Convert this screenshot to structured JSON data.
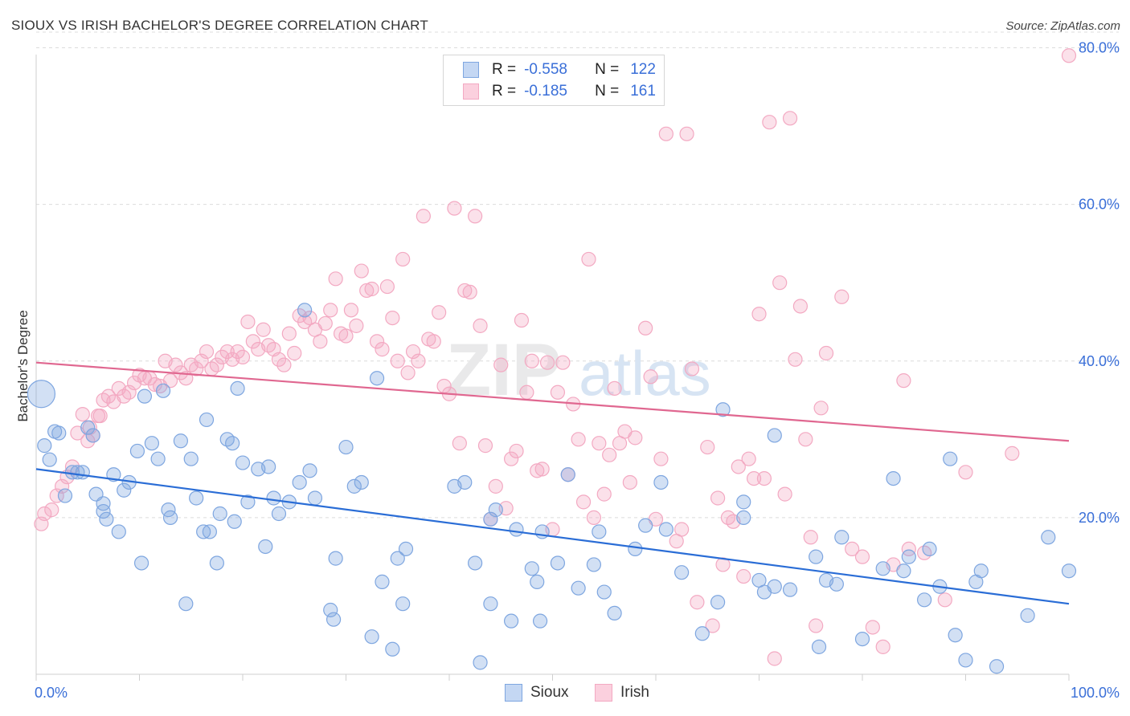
{
  "title": "SIOUX VS IRISH BACHELOR'S DEGREE CORRELATION CHART",
  "source": "Source: ZipAtlas.com",
  "watermark": {
    "zip": "ZIP",
    "atlas": "atlas"
  },
  "legend": {
    "rows": [
      {
        "r_label": "R =",
        "r_value": "-0.558",
        "n_label": "N =",
        "n_value": "122"
      },
      {
        "r_label": "R =",
        "r_value": "-0.185",
        "n_label": "N =",
        "n_value": "161"
      }
    ]
  },
  "bottom_legend": [
    "Sioux",
    "Irish"
  ],
  "chart_data": {
    "type": "scatter",
    "title": "SIOUX VS IRISH BACHELOR'S DEGREE CORRELATION CHART",
    "xlabel": "",
    "ylabel": "Bachelor's Degree",
    "xlim": [
      0,
      100
    ],
    "ylim": [
      0,
      82
    ],
    "x_tick_labels": [
      "0.0%",
      "100.0%"
    ],
    "y_ticks": [
      20,
      40,
      60,
      80
    ],
    "y_tick_labels": [
      "20.0%",
      "40.0%",
      "60.0%",
      "80.0%"
    ],
    "grid": true,
    "series": [
      {
        "name": "Sioux",
        "color": "#7ea6e0",
        "line_color": "#2a6dd6",
        "trend": {
          "x": [
            0,
            100
          ],
          "y": [
            26.2,
            9.0
          ]
        },
        "points": [
          [
            0.5,
            35.8
          ],
          [
            0.8,
            29.2
          ],
          [
            1.3,
            27.4
          ],
          [
            1.8,
            31.0
          ],
          [
            2.2,
            30.8
          ],
          [
            2.8,
            22.8
          ],
          [
            3.5,
            25.8
          ],
          [
            4.0,
            25.8
          ],
          [
            4.5,
            25.8
          ],
          [
            5.0,
            31.5
          ],
          [
            5.5,
            30.5
          ],
          [
            5.8,
            23.0
          ],
          [
            6.5,
            21.8
          ],
          [
            6.5,
            20.8
          ],
          [
            6.8,
            19.8
          ],
          [
            7.5,
            25.5
          ],
          [
            8.0,
            18.2
          ],
          [
            8.5,
            23.5
          ],
          [
            9.0,
            24.5
          ],
          [
            9.8,
            28.5
          ],
          [
            10.2,
            14.2
          ],
          [
            10.5,
            35.5
          ],
          [
            11.2,
            29.5
          ],
          [
            11.8,
            27.5
          ],
          [
            12.3,
            36.2
          ],
          [
            12.8,
            21.0
          ],
          [
            13.0,
            20.0
          ],
          [
            14.0,
            29.8
          ],
          [
            14.5,
            9.0
          ],
          [
            15.0,
            27.5
          ],
          [
            15.5,
            22.5
          ],
          [
            16.2,
            18.2
          ],
          [
            16.8,
            18.2
          ],
          [
            16.5,
            32.5
          ],
          [
            17.5,
            14.2
          ],
          [
            17.8,
            20.5
          ],
          [
            18.5,
            30.0
          ],
          [
            19.0,
            29.5
          ],
          [
            19.2,
            19.5
          ],
          [
            19.5,
            36.5
          ],
          [
            20.0,
            27.0
          ],
          [
            20.5,
            22.0
          ],
          [
            21.5,
            26.2
          ],
          [
            22.2,
            16.3
          ],
          [
            22.5,
            26.5
          ],
          [
            23.0,
            22.5
          ],
          [
            23.5,
            20.5
          ],
          [
            24.5,
            22.0
          ],
          [
            25.5,
            24.5
          ],
          [
            26.0,
            46.5
          ],
          [
            26.5,
            26.0
          ],
          [
            27.0,
            22.5
          ],
          [
            28.5,
            8.2
          ],
          [
            28.8,
            7.0
          ],
          [
            29.0,
            14.8
          ],
          [
            30.0,
            29.0
          ],
          [
            30.8,
            24.0
          ],
          [
            31.5,
            24.5
          ],
          [
            32.5,
            4.8
          ],
          [
            33.0,
            37.8
          ],
          [
            33.5,
            11.8
          ],
          [
            34.5,
            3.2
          ],
          [
            35.0,
            14.8
          ],
          [
            35.5,
            9.0
          ],
          [
            35.8,
            16.0
          ],
          [
            40.5,
            24.0
          ],
          [
            41.5,
            24.5
          ],
          [
            42.5,
            14.2
          ],
          [
            43.0,
            1.5
          ],
          [
            44.0,
            19.8
          ],
          [
            44.0,
            9.0
          ],
          [
            44.5,
            21.0
          ],
          [
            46.0,
            6.8
          ],
          [
            46.5,
            18.5
          ],
          [
            48.0,
            13.5
          ],
          [
            48.5,
            11.8
          ],
          [
            48.8,
            6.8
          ],
          [
            49.0,
            18.2
          ],
          [
            50.5,
            14.2
          ],
          [
            51.5,
            25.5
          ],
          [
            52.5,
            11.0
          ],
          [
            54.0,
            14.0
          ],
          [
            54.5,
            18.2
          ],
          [
            55.0,
            10.5
          ],
          [
            56.0,
            7.8
          ],
          [
            58.0,
            16.0
          ],
          [
            59.0,
            19.0
          ],
          [
            60.5,
            24.5
          ],
          [
            61.0,
            18.5
          ],
          [
            62.5,
            13.0
          ],
          [
            64.5,
            5.2
          ],
          [
            66.0,
            9.2
          ],
          [
            66.5,
            33.8
          ],
          [
            68.5,
            20.0
          ],
          [
            68.5,
            22.0
          ],
          [
            70.0,
            12.0
          ],
          [
            70.5,
            10.5
          ],
          [
            71.5,
            11.2
          ],
          [
            71.5,
            30.5
          ],
          [
            73.0,
            10.8
          ],
          [
            75.5,
            15.0
          ],
          [
            75.8,
            3.5
          ],
          [
            76.5,
            12.0
          ],
          [
            77.5,
            11.5
          ],
          [
            78.0,
            17.5
          ],
          [
            80.0,
            4.5
          ],
          [
            82.0,
            13.5
          ],
          [
            83.0,
            25.0
          ],
          [
            84.0,
            13.2
          ],
          [
            84.5,
            15.0
          ],
          [
            86.0,
            9.5
          ],
          [
            86.5,
            16.0
          ],
          [
            87.5,
            11.2
          ],
          [
            88.5,
            27.5
          ],
          [
            89.0,
            5.0
          ],
          [
            90.0,
            1.8
          ],
          [
            91.0,
            11.8
          ],
          [
            91.5,
            13.2
          ],
          [
            93.0,
            1.0
          ],
          [
            96.0,
            7.5
          ],
          [
            98.0,
            17.5
          ],
          [
            100.0,
            13.2
          ]
        ]
      },
      {
        "name": "Irish",
        "color": "#f3a9c2",
        "line_color": "#e06790",
        "trend": {
          "x": [
            0,
            100
          ],
          "y": [
            39.8,
            29.8
          ]
        },
        "points": [
          [
            0.5,
            19.2
          ],
          [
            0.8,
            20.5
          ],
          [
            1.5,
            21.0
          ],
          [
            2.0,
            22.8
          ],
          [
            2.5,
            24.0
          ],
          [
            3.0,
            25.2
          ],
          [
            3.5,
            26.5
          ],
          [
            4.0,
            30.8
          ],
          [
            4.5,
            33.2
          ],
          [
            5.0,
            29.8
          ],
          [
            5.2,
            31.5
          ],
          [
            5.5,
            30.5
          ],
          [
            6.0,
            33.0
          ],
          [
            6.2,
            33.0
          ],
          [
            6.5,
            35.0
          ],
          [
            7.0,
            35.5
          ],
          [
            7.5,
            34.8
          ],
          [
            8.0,
            36.5
          ],
          [
            8.5,
            35.5
          ],
          [
            9.0,
            36.0
          ],
          [
            9.5,
            37.2
          ],
          [
            10.0,
            38.2
          ],
          [
            10.5,
            37.8
          ],
          [
            11.0,
            37.8
          ],
          [
            11.5,
            37.0
          ],
          [
            12.0,
            36.8
          ],
          [
            12.5,
            40.0
          ],
          [
            13.0,
            37.5
          ],
          [
            13.5,
            39.5
          ],
          [
            14.0,
            38.5
          ],
          [
            14.5,
            37.8
          ],
          [
            15.0,
            39.5
          ],
          [
            15.5,
            39.0
          ],
          [
            16.0,
            40.0
          ],
          [
            16.5,
            41.2
          ],
          [
            17.0,
            39.0
          ],
          [
            17.5,
            39.5
          ],
          [
            18.0,
            40.5
          ],
          [
            18.5,
            41.2
          ],
          [
            19.0,
            40.2
          ],
          [
            19.5,
            41.2
          ],
          [
            20.0,
            40.5
          ],
          [
            20.5,
            45.0
          ],
          [
            21.0,
            42.5
          ],
          [
            21.5,
            41.5
          ],
          [
            22.0,
            44.0
          ],
          [
            22.5,
            42.0
          ],
          [
            23.0,
            41.5
          ],
          [
            23.5,
            40.2
          ],
          [
            24.0,
            39.5
          ],
          [
            24.5,
            43.5
          ],
          [
            25.0,
            41.0
          ],
          [
            25.5,
            45.8
          ],
          [
            26.0,
            45.0
          ],
          [
            26.5,
            45.5
          ],
          [
            27.0,
            44.0
          ],
          [
            27.5,
            42.5
          ],
          [
            28.0,
            44.8
          ],
          [
            28.5,
            46.5
          ],
          [
            29.0,
            50.5
          ],
          [
            29.5,
            43.5
          ],
          [
            30.0,
            43.2
          ],
          [
            30.5,
            46.5
          ],
          [
            31.0,
            44.5
          ],
          [
            31.5,
            51.5
          ],
          [
            32.0,
            49.0
          ],
          [
            32.5,
            49.2
          ],
          [
            33.0,
            42.5
          ],
          [
            33.5,
            41.5
          ],
          [
            34.0,
            49.5
          ],
          [
            34.5,
            45.5
          ],
          [
            35.0,
            40.0
          ],
          [
            35.5,
            53.0
          ],
          [
            36.0,
            38.5
          ],
          [
            36.5,
            41.2
          ],
          [
            37.0,
            40.0
          ],
          [
            37.5,
            58.5
          ],
          [
            38.0,
            42.8
          ],
          [
            38.5,
            42.5
          ],
          [
            39.0,
            46.2
          ],
          [
            39.5,
            36.8
          ],
          [
            40.0,
            35.8
          ],
          [
            40.5,
            59.5
          ],
          [
            41.0,
            29.5
          ],
          [
            41.5,
            49.0
          ],
          [
            42.0,
            48.8
          ],
          [
            42.5,
            58.5
          ],
          [
            43.0,
            44.5
          ],
          [
            43.5,
            29.2
          ],
          [
            44.0,
            19.8
          ],
          [
            44.5,
            24.0
          ],
          [
            45.0,
            39.5
          ],
          [
            45.5,
            21.2
          ],
          [
            46.0,
            27.5
          ],
          [
            46.5,
            28.5
          ],
          [
            47.0,
            45.2
          ],
          [
            47.5,
            36.0
          ],
          [
            48.0,
            40.0
          ],
          [
            48.5,
            26.0
          ],
          [
            49.0,
            26.2
          ],
          [
            49.5,
            39.8
          ],
          [
            50.0,
            18.5
          ],
          [
            50.5,
            36.0
          ],
          [
            51.0,
            39.8
          ],
          [
            51.5,
            25.5
          ],
          [
            52.0,
            34.5
          ],
          [
            52.5,
            30.0
          ],
          [
            53.0,
            22.0
          ],
          [
            53.5,
            53.0
          ],
          [
            54.0,
            20.0
          ],
          [
            54.5,
            29.5
          ],
          [
            55.0,
            23.0
          ],
          [
            55.5,
            28.0
          ],
          [
            56.0,
            36.5
          ],
          [
            56.5,
            29.5
          ],
          [
            57.0,
            31.0
          ],
          [
            57.5,
            24.5
          ],
          [
            58.0,
            30.2
          ],
          [
            59.0,
            44.2
          ],
          [
            59.5,
            38.0
          ],
          [
            60.0,
            19.8
          ],
          [
            60.5,
            27.5
          ],
          [
            61.0,
            69.0
          ],
          [
            62.0,
            17.0
          ],
          [
            62.5,
            18.5
          ],
          [
            63.0,
            69.0
          ],
          [
            63.5,
            39.0
          ],
          [
            64.0,
            9.2
          ],
          [
            65.0,
            29.0
          ],
          [
            65.5,
            6.2
          ],
          [
            66.0,
            22.5
          ],
          [
            66.5,
            14.0
          ],
          [
            67.0,
            20.0
          ],
          [
            67.5,
            19.5
          ],
          [
            68.0,
            26.5
          ],
          [
            68.5,
            12.5
          ],
          [
            69.0,
            27.5
          ],
          [
            69.5,
            25.0
          ],
          [
            70.0,
            46.0
          ],
          [
            70.5,
            25.0
          ],
          [
            71.0,
            70.5
          ],
          [
            71.5,
            2.0
          ],
          [
            72.0,
            50.0
          ],
          [
            72.5,
            23.0
          ],
          [
            73.0,
            71.0
          ],
          [
            73.5,
            40.2
          ],
          [
            74.0,
            47.0
          ],
          [
            74.5,
            30.0
          ],
          [
            75.0,
            17.5
          ],
          [
            75.5,
            6.2
          ],
          [
            76.0,
            34.0
          ],
          [
            76.5,
            41.0
          ],
          [
            78.0,
            48.2
          ],
          [
            79.0,
            16.0
          ],
          [
            80.0,
            15.0
          ],
          [
            81.0,
            6.0
          ],
          [
            82.0,
            3.5
          ],
          [
            83.0,
            14.0
          ],
          [
            84.0,
            37.5
          ],
          [
            84.5,
            16.0
          ],
          [
            86.0,
            15.5
          ],
          [
            88.0,
            9.5
          ],
          [
            90.0,
            25.8
          ],
          [
            94.5,
            28.2
          ],
          [
            100.0,
            79.0
          ]
        ]
      }
    ]
  }
}
